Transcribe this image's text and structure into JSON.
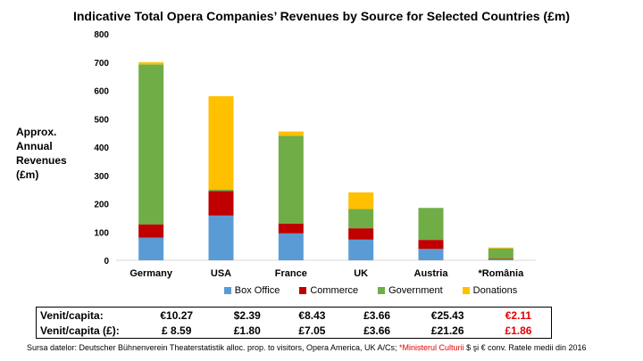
{
  "chart_data": {
    "type": "bar",
    "stacked": true,
    "title": "Indicative Total Opera Companies’ Revenues by Source for Selected Countries (£m)",
    "ylabel_lines": [
      "Approx.",
      "Annual",
      "Revenues",
      "(£m)"
    ],
    "categories": [
      "Germany",
      "USA",
      "France",
      "UK",
      "Austria",
      "*România"
    ],
    "ylim": [
      0,
      800
    ],
    "yticks": [
      0,
      100,
      200,
      300,
      400,
      500,
      600,
      700,
      800
    ],
    "grid": false,
    "legend_position": "bottom",
    "series": [
      {
        "name": "Box Office",
        "color": "#5b9bd5",
        "values": [
          80,
          158,
          95,
          73,
          40,
          3
        ]
      },
      {
        "name": "Commerce",
        "color": "#c00000",
        "values": [
          47,
          87,
          35,
          40,
          32,
          2
        ]
      },
      {
        "name": "Government",
        "color": "#70ad47",
        "values": [
          565,
          5,
          310,
          68,
          113,
          37
        ]
      },
      {
        "name": "Donations",
        "color": "#ffc000",
        "values": [
          8,
          330,
          15,
          59,
          0,
          3
        ]
      }
    ]
  },
  "table": {
    "rows": [
      {
        "label": "Venit/capita:",
        "values": [
          "€10.27",
          "$2.39",
          "€8.43",
          "£3.66",
          "€25.43",
          "€2.11"
        ]
      },
      {
        "label": "Venit/capita (£):",
        "values": [
          "£ 8.59",
          "£1.80",
          "£7.05",
          "£3.66",
          "£21.26",
          "£1.86"
        ]
      }
    ],
    "highlight_color": "#e60000"
  },
  "source": {
    "prefix": "Sursa datelor: Deutscher Bühnenverein Theaterstatistik alloc. prop. to visitors, Opera America, UK A/Cs; ",
    "highlight": "*Ministerul Culturii",
    "suffix": " $ şi € conv. Ratele medii din 2016"
  }
}
